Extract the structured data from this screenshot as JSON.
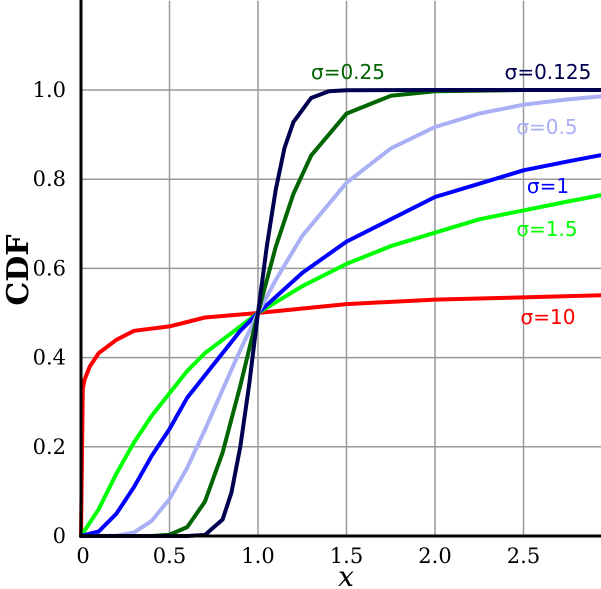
{
  "chart_data": {
    "type": "line",
    "title": "",
    "xlabel": "x",
    "ylabel": "CDF",
    "xlim": [
      0,
      2.95
    ],
    "ylim": [
      0,
      1.2
    ],
    "grid": true,
    "x_ticks": [
      {
        "value": 0,
        "label": "0"
      },
      {
        "value": 0.5,
        "label": "0.5"
      },
      {
        "value": 1.0,
        "label": "1.0"
      },
      {
        "value": 1.5,
        "label": "1.5"
      },
      {
        "value": 2.0,
        "label": "2.0"
      },
      {
        "value": 2.5,
        "label": "2.5"
      }
    ],
    "y_ticks": [
      {
        "value": 0,
        "label": "0"
      },
      {
        "value": 0.2,
        "label": "0.2"
      },
      {
        "value": 0.4,
        "label": "0.4"
      },
      {
        "value": 0.6,
        "label": "0.6"
      },
      {
        "value": 0.8,
        "label": "0.8"
      },
      {
        "value": 1.0,
        "label": "1.0"
      }
    ],
    "series": [
      {
        "name": "σ=10",
        "sigma": 10,
        "color": "#ff0000",
        "x": [
          0,
          0.01,
          0.02,
          0.05,
          0.1,
          0.2,
          0.3,
          0.5,
          0.7,
          1.0,
          1.5,
          2.0,
          2.5,
          2.95
        ],
        "y": [
          0,
          0.33,
          0.35,
          0.38,
          0.41,
          0.44,
          0.46,
          0.47,
          0.49,
          0.5,
          0.52,
          0.53,
          0.535,
          0.54
        ]
      },
      {
        "name": "σ=1.5",
        "sigma": 1.5,
        "color": "#00ff00",
        "x": [
          0,
          0.1,
          0.2,
          0.3,
          0.4,
          0.5,
          0.6,
          0.7,
          0.8,
          0.9,
          1.0,
          1.25,
          1.5,
          1.75,
          2.0,
          2.25,
          2.5,
          2.75,
          2.95
        ],
        "y": [
          0,
          0.06,
          0.14,
          0.21,
          0.27,
          0.32,
          0.37,
          0.41,
          0.44,
          0.47,
          0.5,
          0.56,
          0.61,
          0.65,
          0.68,
          0.71,
          0.73,
          0.75,
          0.765
        ]
      },
      {
        "name": "σ=1",
        "sigma": 1,
        "color": "#0000ff",
        "x": [
          0,
          0.1,
          0.2,
          0.3,
          0.4,
          0.5,
          0.6,
          0.7,
          0.8,
          0.9,
          1.0,
          1.25,
          1.5,
          1.75,
          2.0,
          2.25,
          2.5,
          2.75,
          2.95
        ],
        "y": [
          0,
          0.01,
          0.05,
          0.11,
          0.18,
          0.24,
          0.31,
          0.36,
          0.41,
          0.46,
          0.5,
          0.59,
          0.66,
          0.71,
          0.76,
          0.79,
          0.82,
          0.84,
          0.855
        ]
      },
      {
        "name": "σ=0.5",
        "sigma": 0.5,
        "color": "#aab0f5",
        "x": [
          0,
          0.2,
          0.3,
          0.4,
          0.5,
          0.6,
          0.7,
          0.8,
          0.9,
          1.0,
          1.1,
          1.25,
          1.5,
          1.75,
          2.0,
          2.25,
          2.5,
          2.75,
          2.95
        ],
        "y": [
          0,
          0.0006,
          0.008,
          0.034,
          0.083,
          0.153,
          0.238,
          0.328,
          0.417,
          0.5,
          0.574,
          0.673,
          0.792,
          0.869,
          0.917,
          0.947,
          0.967,
          0.979,
          0.986
        ]
      },
      {
        "name": "σ=0.25",
        "sigma": 0.25,
        "color": "#006400",
        "x": [
          0,
          0.4,
          0.5,
          0.6,
          0.7,
          0.8,
          0.9,
          1.0,
          1.1,
          1.2,
          1.3,
          1.5,
          1.75,
          2.0,
          2.5,
          2.95
        ],
        "y": [
          0,
          0.0001,
          0.003,
          0.02,
          0.077,
          0.187,
          0.337,
          0.5,
          0.648,
          0.767,
          0.853,
          0.947,
          0.987,
          0.997,
          1.0,
          1.0
        ]
      },
      {
        "name": "σ=0.125",
        "sigma": 0.125,
        "color": "#000050",
        "x": [
          0,
          0.6,
          0.7,
          0.8,
          0.85,
          0.9,
          0.95,
          1.0,
          1.05,
          1.1,
          1.15,
          1.2,
          1.3,
          1.4,
          1.5,
          2.0,
          2.95
        ],
        "y": [
          0,
          2e-05,
          0.0022,
          0.037,
          0.097,
          0.2,
          0.34,
          0.5,
          0.651,
          0.776,
          0.87,
          0.928,
          0.982,
          0.997,
          0.9995,
          1.0,
          1.0
        ]
      }
    ]
  }
}
